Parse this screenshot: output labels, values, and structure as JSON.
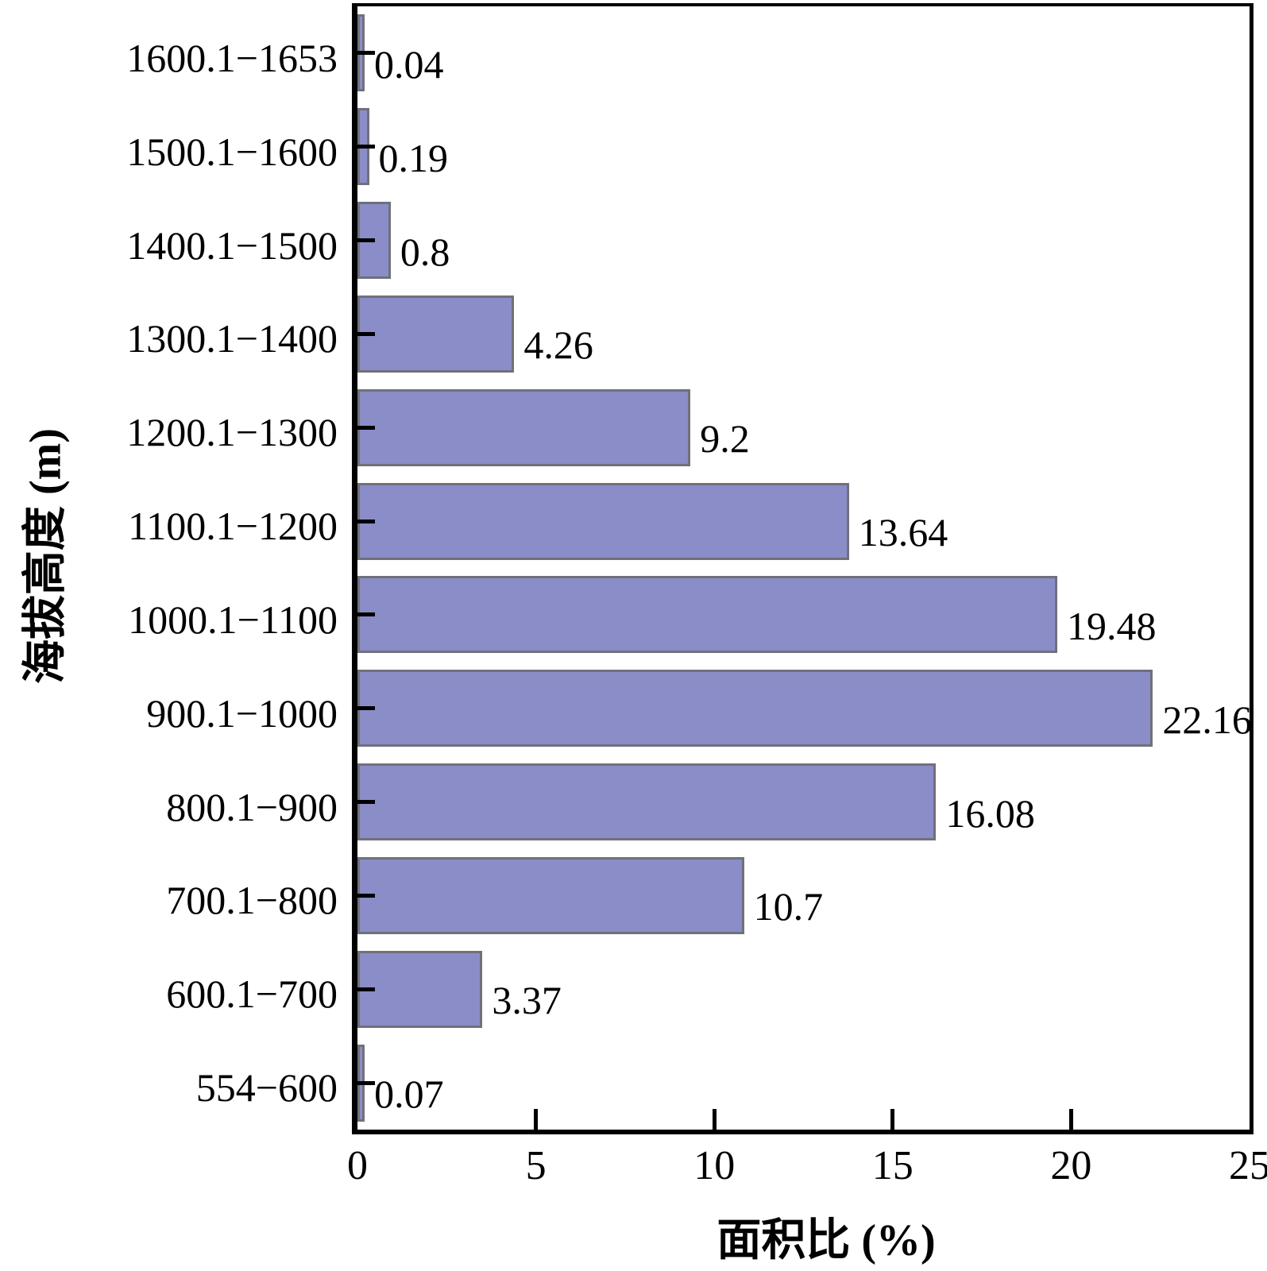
{
  "chart_data": {
    "type": "bar",
    "orientation": "horizontal",
    "title": "",
    "xlabel": "面积比 (%)",
    "ylabel": "海拔高度 (m)",
    "xlim": [
      0,
      25
    ],
    "x_ticks": [
      "0",
      "5",
      "10",
      "15",
      "20",
      "25"
    ],
    "grid": false,
    "legend": false,
    "categories": [
      "1600.1−1653",
      "1500.1−1600",
      "1400.1−1500",
      "1300.1−1400",
      "1200.1−1300",
      "1100.1−1200",
      "1000.1−1100",
      "900.1−1000",
      "800.1−900",
      "700.1−800",
      "600.1−700",
      "554−600"
    ],
    "values": [
      0.04,
      0.19,
      0.8,
      4.26,
      9.2,
      13.64,
      19.48,
      22.16,
      16.08,
      10.7,
      3.37,
      0.07
    ],
    "value_labels": [
      "0.04",
      "0.19",
      "0.8",
      "4.26",
      "9.2",
      "13.64",
      "19.48",
      "22.16",
      "16.08",
      "10.7",
      "3.37",
      "0.07"
    ],
    "colors": {
      "bar_fill": "#8A8DC7",
      "bar_border": "#70707A",
      "axis": "#000000",
      "text": "#000000",
      "background": "#FFFFFF"
    }
  }
}
